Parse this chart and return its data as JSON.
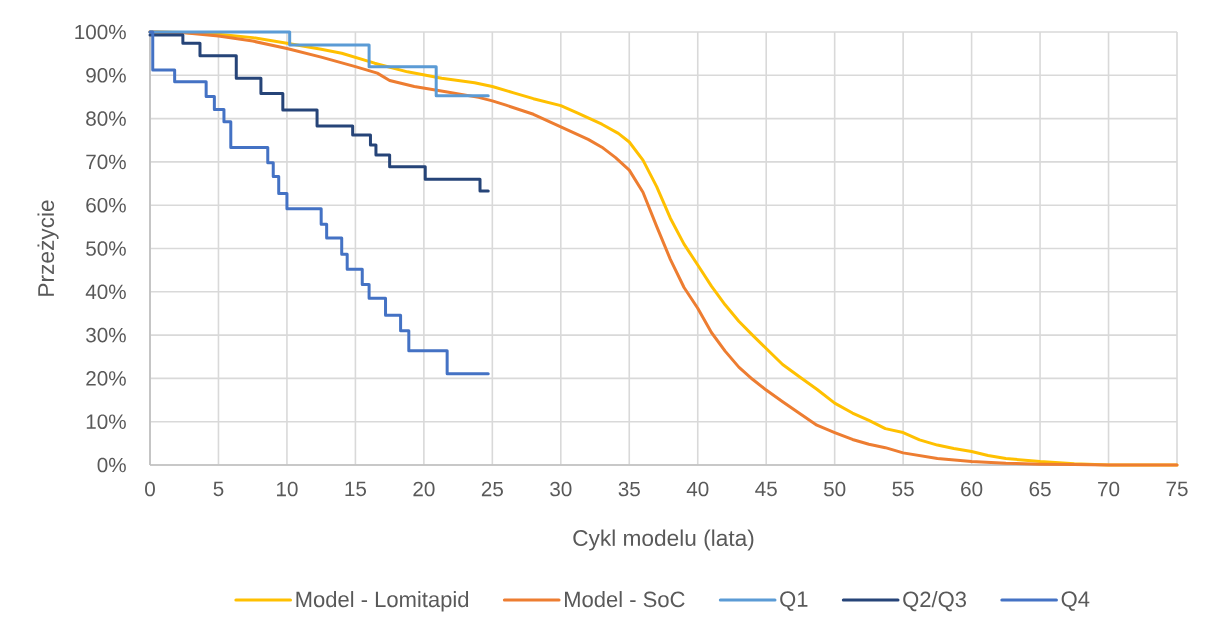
{
  "chart_data": {
    "type": "line",
    "xlabel": "Cykl modelu (lata)",
    "ylabel": "Przeżycie",
    "xlim": [
      0,
      75
    ],
    "xticks": [
      0,
      5,
      10,
      15,
      20,
      25,
      30,
      35,
      40,
      45,
      50,
      55,
      60,
      65,
      70,
      75
    ],
    "ylim": [
      0,
      100
    ],
    "yticks": [
      {
        "value": 0,
        "label": "0%"
      },
      {
        "value": 10,
        "label": "10%"
      },
      {
        "value": 20,
        "label": "20%"
      },
      {
        "value": 30,
        "label": "30%"
      },
      {
        "value": 40,
        "label": "40%"
      },
      {
        "value": 50,
        "label": "50%"
      },
      {
        "value": 60,
        "label": "60%"
      },
      {
        "value": 70,
        "label": "70%"
      },
      {
        "value": 80,
        "label": "80%"
      },
      {
        "value": 90,
        "label": "90%"
      },
      {
        "value": 100,
        "label": "100%"
      }
    ],
    "grid": true,
    "legend": "bottom",
    "marker": "none",
    "line_style": "solid",
    "series": [
      {
        "name": "Model - Lomitapid",
        "color": "#ffc000",
        "x": [
          0,
          2.5,
          5,
          7.5,
          10,
          12.5,
          14,
          16.4,
          18.8,
          21.3,
          23.7,
          25,
          26.5,
          28,
          30,
          31.2,
          33,
          34.2,
          35,
          36,
          37,
          38,
          39,
          40,
          41,
          42,
          43,
          44,
          45,
          46.2,
          47.5,
          48.7,
          50,
          51.3,
          52.5,
          53.7,
          55,
          56.2,
          57.5,
          58.7,
          60,
          61.2,
          62.5,
          65,
          67.5,
          70,
          75
        ],
        "values": [
          100,
          99.9,
          99.5,
          98.7,
          97.4,
          96.0,
          95.1,
          92.8,
          90.8,
          89.3,
          88.3,
          87.4,
          86.0,
          84.6,
          83.0,
          81.3,
          78.7,
          76.6,
          74.6,
          70.4,
          64.3,
          57.0,
          51.0,
          46.2,
          41.3,
          37.0,
          33.2,
          30.0,
          26.9,
          23.2,
          20.2,
          17.5,
          14.3,
          12.0,
          10.3,
          8.4,
          7.5,
          5.8,
          4.6,
          3.8,
          3.1,
          2.2,
          1.5,
          0.8,
          0.3,
          0,
          0
        ]
      },
      {
        "name": "Model - SoC",
        "color": "#ed7d31",
        "x": [
          0,
          2.5,
          5,
          7.5,
          10,
          12.5,
          15,
          16.6,
          17.5,
          19.3,
          21.6,
          24,
          25,
          26,
          28,
          30,
          32,
          33,
          34,
          35,
          36,
          37,
          38,
          39,
          40,
          41,
          42,
          43,
          44,
          45,
          46.2,
          47.5,
          48.7,
          50,
          51.3,
          52.5,
          53.7,
          55,
          57.5,
          60,
          62.5,
          65,
          67.5,
          70,
          75
        ],
        "values": [
          100,
          99.8,
          99.1,
          97.9,
          96.2,
          94.2,
          92.0,
          90.5,
          88.8,
          87.4,
          86.2,
          84.9,
          84.1,
          83.1,
          81.0,
          78.1,
          75.2,
          73.4,
          71.0,
          68.1,
          63.0,
          55.1,
          47.5,
          41.0,
          36.2,
          30.6,
          26.3,
          22.6,
          19.8,
          17.3,
          14.6,
          11.8,
          9.2,
          7.5,
          5.9,
          4.8,
          4.0,
          2.8,
          1.5,
          0.8,
          0.4,
          0.2,
          0.1,
          0,
          0
        ]
      },
      {
        "name": "Q1",
        "color": "#5b9bd5",
        "type": "step",
        "x": [
          0,
          10.2,
          16.0,
          20.9,
          24.7
        ],
        "values": [
          100,
          97,
          92,
          85.3,
          85.3
        ]
      },
      {
        "name": "Q2/Q3",
        "color": "#264478",
        "type": "step",
        "x": [
          0,
          2.4,
          3.65,
          6.3,
          8.1,
          9.7,
          12.2,
          14.8,
          16.1,
          16.5,
          17.5,
          20.1,
          24.1,
          24.7
        ],
        "values": [
          99.3,
          97.4,
          94.5,
          89.3,
          85.8,
          82.0,
          78.3,
          76.2,
          73.9,
          71.6,
          68.9,
          66.0,
          63.3,
          63.3
        ]
      },
      {
        "name": "Q4",
        "color": "#4472c4",
        "type": "step",
        "x": [
          0,
          0.2,
          1.8,
          4.1,
          4.7,
          5.4,
          5.9,
          8.6,
          9.0,
          9.4,
          10.0,
          12.5,
          12.9,
          14.0,
          14.4,
          15.5,
          16.0,
          17.2,
          18.3,
          18.9,
          21.7,
          24.7
        ],
        "values": [
          100,
          91.2,
          88.5,
          85.1,
          82.1,
          79.3,
          73.3,
          69.8,
          66.6,
          62.7,
          59.2,
          55.6,
          52.4,
          48.7,
          45.2,
          41.7,
          38.5,
          34.6,
          31.0,
          26.4,
          21.1,
          21.1
        ]
      }
    ]
  }
}
